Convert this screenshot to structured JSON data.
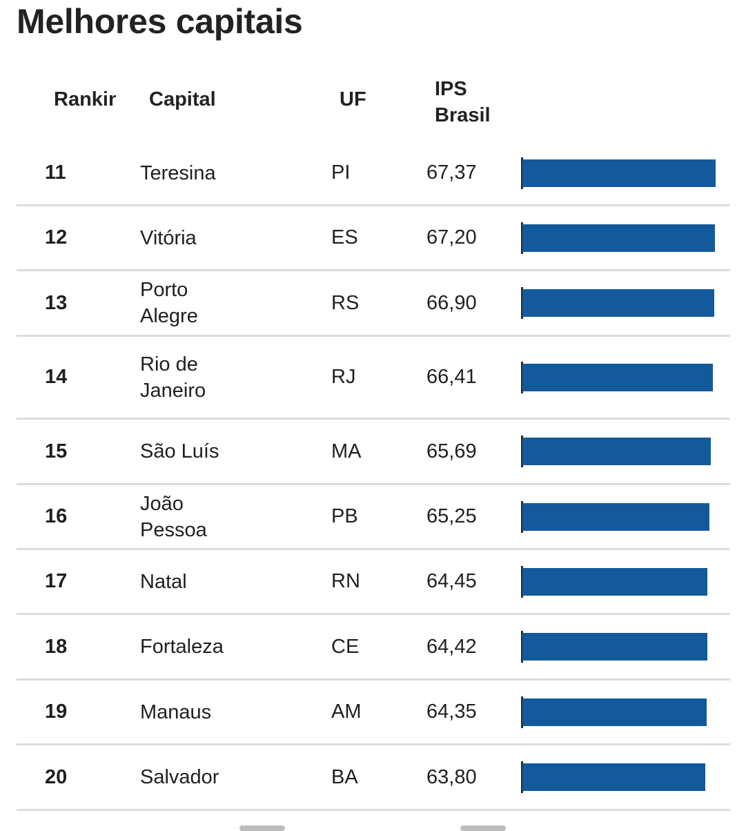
{
  "title": "Melhores capitais",
  "columns": {
    "rank": "Ranking",
    "capital": "Capital",
    "uf": "UF",
    "ips_line1": "IPS",
    "ips_line2": "Brasil"
  },
  "colors": {
    "bar": "#125a9c",
    "divider": "#dcdcdc"
  },
  "chart_data": {
    "type": "bar",
    "orientation": "horizontal",
    "title": "Melhores capitais",
    "categories": [
      "Teresina",
      "Vitória",
      "Porto Alegre",
      "Rio de Janeiro",
      "São Luís",
      "João Pessoa",
      "Natal",
      "Fortaleza",
      "Manaus",
      "Salvador"
    ],
    "values": [
      67.37,
      67.2,
      66.9,
      66.41,
      65.69,
      65.25,
      64.45,
      64.42,
      64.35,
      63.8
    ],
    "xlim": [
      0,
      67.37
    ],
    "rows": [
      {
        "rank": "11",
        "capital": "Teresina",
        "uf": "PI",
        "value_label": "67,37",
        "value": 67.37
      },
      {
        "rank": "12",
        "capital": "Vitória",
        "uf": "ES",
        "value_label": "67,20",
        "value": 67.2
      },
      {
        "rank": "13",
        "capital": "Porto Alegre",
        "uf": "RS",
        "value_label": "66,90",
        "value": 66.9
      },
      {
        "rank": "14",
        "capital": "Rio de Janeiro",
        "uf": "RJ",
        "value_label": "66,41",
        "value": 66.41
      },
      {
        "rank": "15",
        "capital": "São Luís",
        "uf": "MA",
        "value_label": "65,69",
        "value": 65.69
      },
      {
        "rank": "16",
        "capital": "João Pessoa",
        "uf": "PB",
        "value_label": "65,25",
        "value": 65.25
      },
      {
        "rank": "17",
        "capital": "Natal",
        "uf": "RN",
        "value_label": "64,45",
        "value": 64.45
      },
      {
        "rank": "18",
        "capital": "Fortaleza",
        "uf": "CE",
        "value_label": "64,42",
        "value": 64.42
      },
      {
        "rank": "19",
        "capital": "Manaus",
        "uf": "AM",
        "value_label": "64,35",
        "value": 64.35
      },
      {
        "rank": "20",
        "capital": "Salvador",
        "uf": "BA",
        "value_label": "63,80",
        "value": 63.8
      }
    ]
  }
}
